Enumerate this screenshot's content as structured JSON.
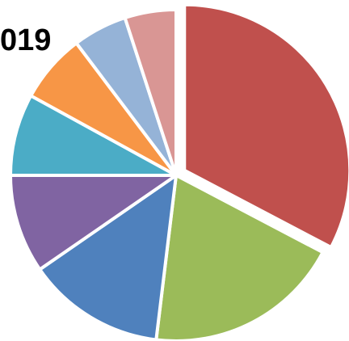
{
  "chart_data": {
    "type": "pie",
    "title": "019",
    "slices": [
      {
        "value": 34,
        "color": "#C0504D",
        "exploded": true
      },
      {
        "value": 20,
        "color": "#9BBB59",
        "exploded": false
      },
      {
        "value": 14,
        "color": "#4F81BD",
        "exploded": false
      },
      {
        "value": 10,
        "color": "#8064A2",
        "exploded": false
      },
      {
        "value": 8.3,
        "color": "#4BACC6",
        "exploded": false
      },
      {
        "value": 7,
        "color": "#F79646",
        "exploded": false
      },
      {
        "value": 5.5,
        "color": "#95B3D7",
        "exploded": false
      },
      {
        "value": 5.2,
        "color": "#D99694",
        "exploded": false
      }
    ],
    "legend": "none"
  }
}
